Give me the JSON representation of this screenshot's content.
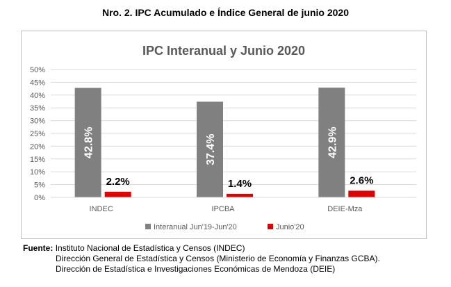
{
  "document_title": "Nro. 2. IPC Acumulado e Índice General de junio 2020",
  "chart_data": {
    "type": "bar",
    "title": "IPC Interanual y Junio 2020",
    "categories": [
      "INDEC",
      "IPCBA",
      "DEIE-Mza"
    ],
    "series": [
      {
        "name": "Interanual Jun'19-Jun'20",
        "values": [
          42.8,
          37.4,
          42.9
        ],
        "labels": [
          "42.8%",
          "37.4%",
          "42.9%"
        ],
        "color": "#808080"
      },
      {
        "name": "Junio'20",
        "values": [
          2.2,
          1.4,
          2.6
        ],
        "labels": [
          "2.2%",
          "1.4%",
          "2.6%"
        ],
        "color": "#e00000"
      }
    ],
    "ylim": [
      0,
      50
    ],
    "ytick_labels": [
      "0%",
      "5%",
      "10%",
      "15%",
      "20%",
      "25%",
      "30%",
      "35%",
      "40%",
      "45%",
      "50%"
    ],
    "grid": true,
    "legend_position": "bottom"
  },
  "source": {
    "label": "Fuente:",
    "line1": "Instituto Nacional de Estadística y Censos (INDEC)",
    "line2": "Dirección General de Estadística y Censos (Ministerio de Economía y Finanzas GCBA).",
    "line3": "Dirección de Estadística e Investigaciones Económicas de Mendoza (DEIE)"
  }
}
